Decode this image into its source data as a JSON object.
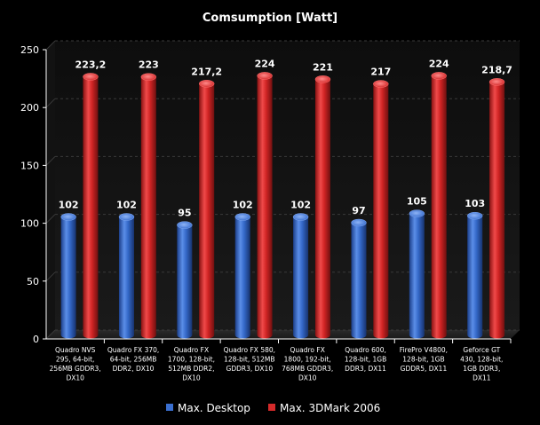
{
  "chart_data": {
    "type": "bar",
    "title": "Comsumption [Watt]",
    "xlabel": "",
    "ylabel": "",
    "ylim": [
      0,
      250
    ],
    "yticks": [
      "0",
      "50",
      "100",
      "150",
      "200",
      "250"
    ],
    "grid": true,
    "legend_position": "bottom",
    "categories": [
      [
        "Quadro NVS",
        "295, 64-bit,",
        "256MB GDDR3,",
        "DX10"
      ],
      [
        "Quadro FX 370,",
        "64-bit, 256MB",
        "DDR2, DX10"
      ],
      [
        "Quadro FX",
        "1700, 128-bit,",
        "512MB DDR2,",
        "DX10"
      ],
      [
        "Quadro FX 580,",
        "128-bit, 512MB",
        "GDDR3, DX10"
      ],
      [
        "Quadro FX",
        "1800, 192-bit,",
        "768MB GDDR3,",
        "DX10"
      ],
      [
        "Quadro 600,",
        "128-bit, 1GB",
        "DDR3, DX11"
      ],
      [
        "FirePro V4800,",
        "128-bit, 1GB",
        "GDDR5, DX11"
      ],
      [
        "Geforce GT",
        "430, 128-bit,",
        "1GB DDR3,",
        "DX11"
      ]
    ],
    "series": [
      {
        "name": "Max. Desktop",
        "color": "#3a6fd0",
        "values": [
          102,
          102,
          95,
          102,
          102,
          97,
          105,
          103
        ],
        "labels": [
          "102",
          "102",
          "95",
          "102",
          "102",
          "97",
          "105",
          "103"
        ]
      },
      {
        "name": "Max. 3DMark 2006",
        "color": "#d42a2a",
        "values": [
          223.2,
          223,
          217.2,
          224,
          221,
          217,
          224,
          218.7
        ],
        "labels": [
          "223,2",
          "223",
          "217,2",
          "224",
          "221",
          "217",
          "224",
          "218,7"
        ]
      }
    ]
  }
}
